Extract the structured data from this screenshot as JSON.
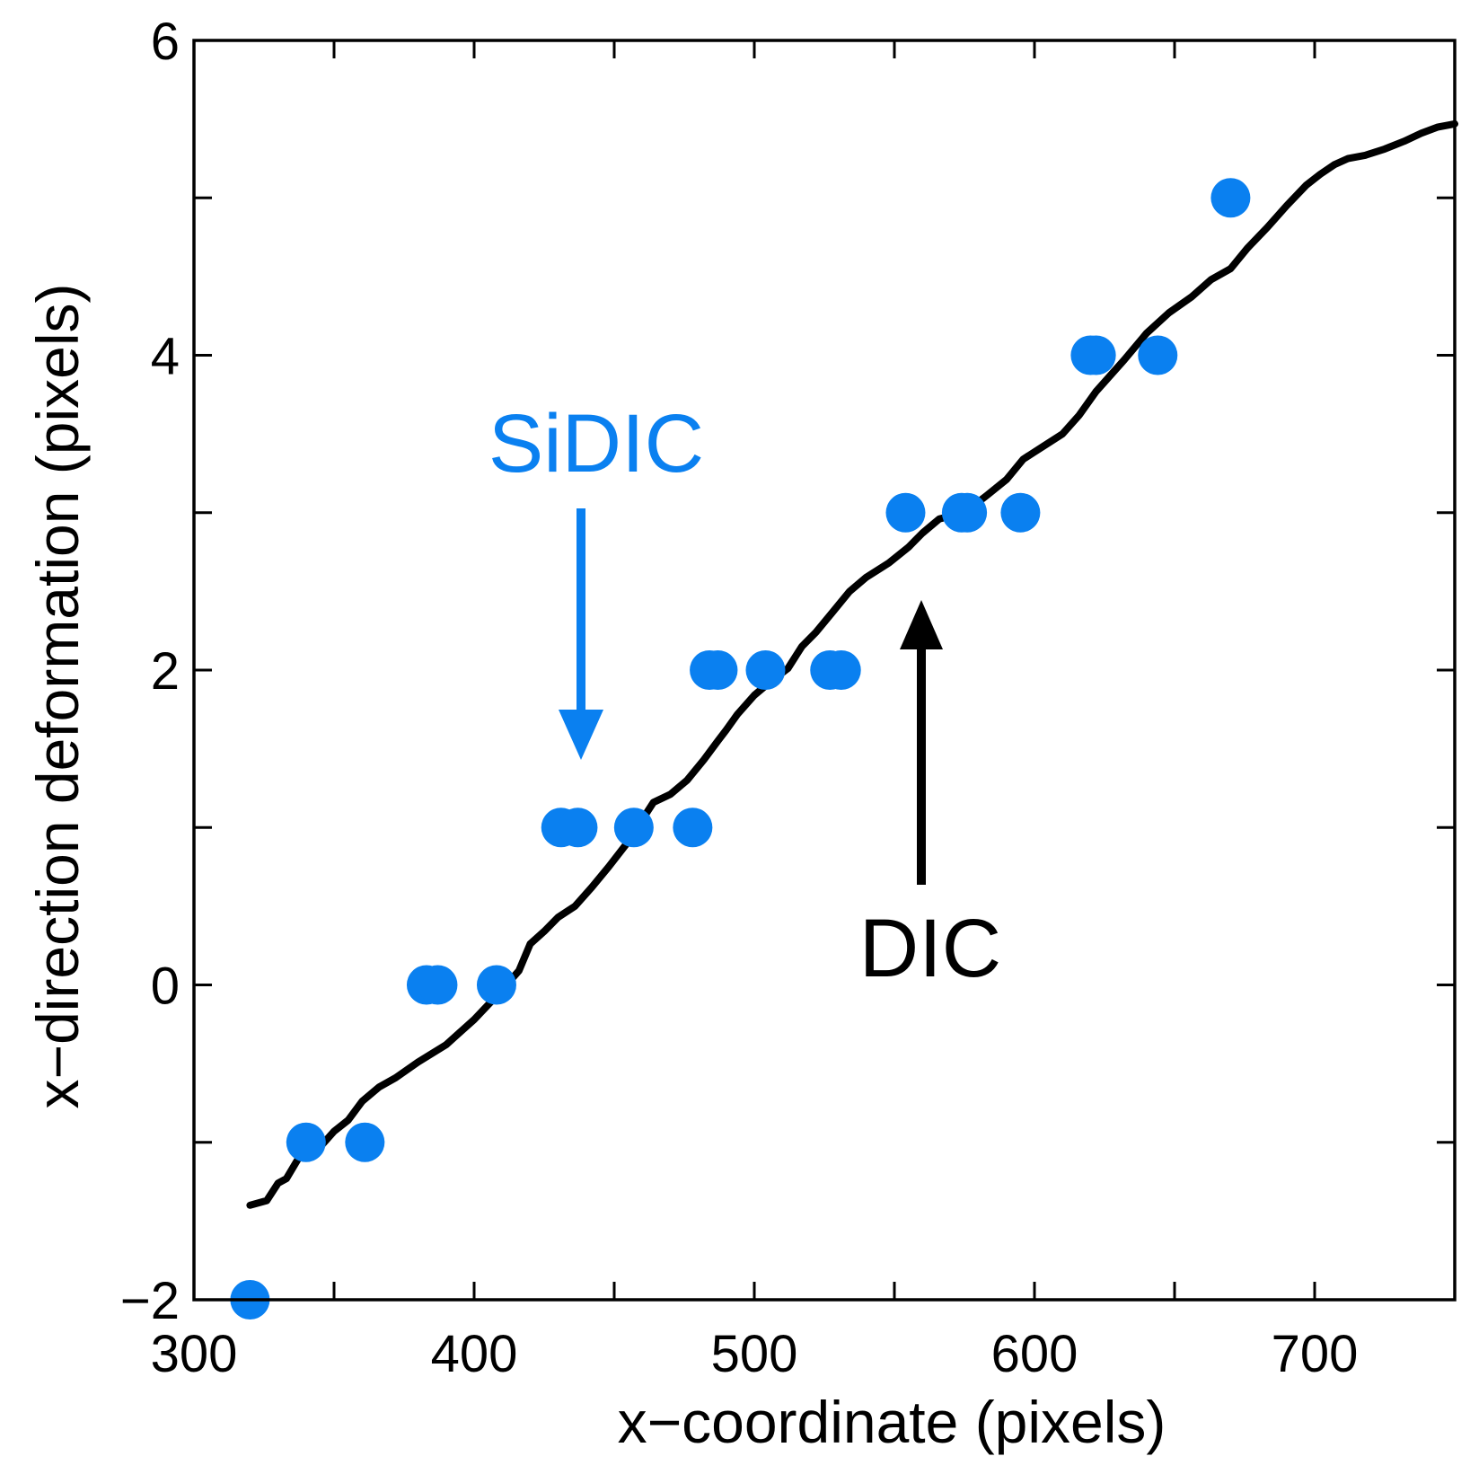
{
  "chart_data": {
    "type": "scatter",
    "title": "",
    "xlabel": "x−coordinate (pixels)",
    "ylabel": "x−direction deformation (pixels)",
    "xlim": [
      300,
      750
    ],
    "ylim": [
      -2,
      6
    ],
    "xticks": [
      300,
      400,
      500,
      600,
      700
    ],
    "xtick_labels": [
      "300",
      "400",
      "500",
      "600",
      "700"
    ],
    "yticks": [
      -2,
      0,
      2,
      4,
      6
    ],
    "ytick_labels": [
      "−2",
      "0",
      "2",
      "4",
      "6"
    ],
    "x_minor_step": 50,
    "y_minor_step": 1,
    "grid": false,
    "colors": {
      "sidic": "#0a80f0",
      "dic": "#000000"
    },
    "series": [
      {
        "name": "SiDIC",
        "kind": "scatter",
        "points": [
          [
            320,
            -2
          ],
          [
            340,
            -1
          ],
          [
            361,
            -1
          ],
          [
            383,
            0
          ],
          [
            387,
            0
          ],
          [
            408,
            0
          ],
          [
            431,
            1
          ],
          [
            437,
            1
          ],
          [
            457,
            1
          ],
          [
            478,
            1
          ],
          [
            484,
            2
          ],
          [
            487,
            2
          ],
          [
            504,
            2
          ],
          [
            527,
            2
          ],
          [
            531,
            2
          ],
          [
            554,
            3
          ],
          [
            574,
            3
          ],
          [
            576,
            3
          ],
          [
            595,
            3
          ],
          [
            620,
            4
          ],
          [
            622,
            4
          ],
          [
            644,
            4
          ],
          [
            670,
            5
          ]
        ]
      },
      {
        "name": "DIC",
        "kind": "line",
        "points": [
          [
            320,
            -1.4
          ],
          [
            326,
            -1.37
          ],
          [
            330,
            -1.26
          ],
          [
            333,
            -1.23
          ],
          [
            338,
            -1.08
          ],
          [
            345,
            -1.03
          ],
          [
            350,
            -0.93
          ],
          [
            355,
            -0.86
          ],
          [
            360,
            -0.74
          ],
          [
            366,
            -0.65
          ],
          [
            372,
            -0.59
          ],
          [
            380,
            -0.49
          ],
          [
            390,
            -0.38
          ],
          [
            400,
            -0.22
          ],
          [
            408,
            -0.07
          ],
          [
            416,
            0.09
          ],
          [
            420,
            0.26
          ],
          [
            425,
            0.34
          ],
          [
            430,
            0.43
          ],
          [
            436,
            0.5
          ],
          [
            442,
            0.62
          ],
          [
            448,
            0.75
          ],
          [
            455,
            0.91
          ],
          [
            460,
            1.05
          ],
          [
            464,
            1.16
          ],
          [
            470,
            1.21
          ],
          [
            476,
            1.3
          ],
          [
            482,
            1.43
          ],
          [
            487,
            1.55
          ],
          [
            490,
            1.62
          ],
          [
            494,
            1.72
          ],
          [
            500,
            1.84
          ],
          [
            506,
            1.93
          ],
          [
            512,
            2.01
          ],
          [
            517,
            2.15
          ],
          [
            522,
            2.24
          ],
          [
            528,
            2.37
          ],
          [
            534,
            2.5
          ],
          [
            540,
            2.59
          ],
          [
            548,
            2.68
          ],
          [
            555,
            2.78
          ],
          [
            560,
            2.87
          ],
          [
            566,
            2.96
          ],
          [
            575,
            3.0
          ],
          [
            583,
            3.11
          ],
          [
            590,
            3.21
          ],
          [
            596,
            3.34
          ],
          [
            603,
            3.42
          ],
          [
            610,
            3.5
          ],
          [
            616,
            3.62
          ],
          [
            622,
            3.77
          ],
          [
            626,
            3.85
          ],
          [
            632,
            3.97
          ],
          [
            640,
            4.14
          ],
          [
            648,
            4.27
          ],
          [
            656,
            4.37
          ],
          [
            663,
            4.48
          ],
          [
            670,
            4.55
          ],
          [
            676,
            4.68
          ],
          [
            683,
            4.81
          ],
          [
            690,
            4.95
          ],
          [
            697,
            5.08
          ],
          [
            702,
            5.15
          ],
          [
            707,
            5.21
          ],
          [
            712,
            5.25
          ],
          [
            718,
            5.27
          ],
          [
            725,
            5.31
          ],
          [
            732,
            5.36
          ],
          [
            738,
            5.41
          ],
          [
            744,
            5.45
          ],
          [
            750,
            5.47
          ]
        ]
      }
    ],
    "annotations": [
      {
        "name": "sidic-annotation",
        "text": "SiDIC",
        "color": "#0a80f0"
      },
      {
        "name": "dic-annotation",
        "text": "DIC",
        "color": "#000000"
      }
    ]
  }
}
